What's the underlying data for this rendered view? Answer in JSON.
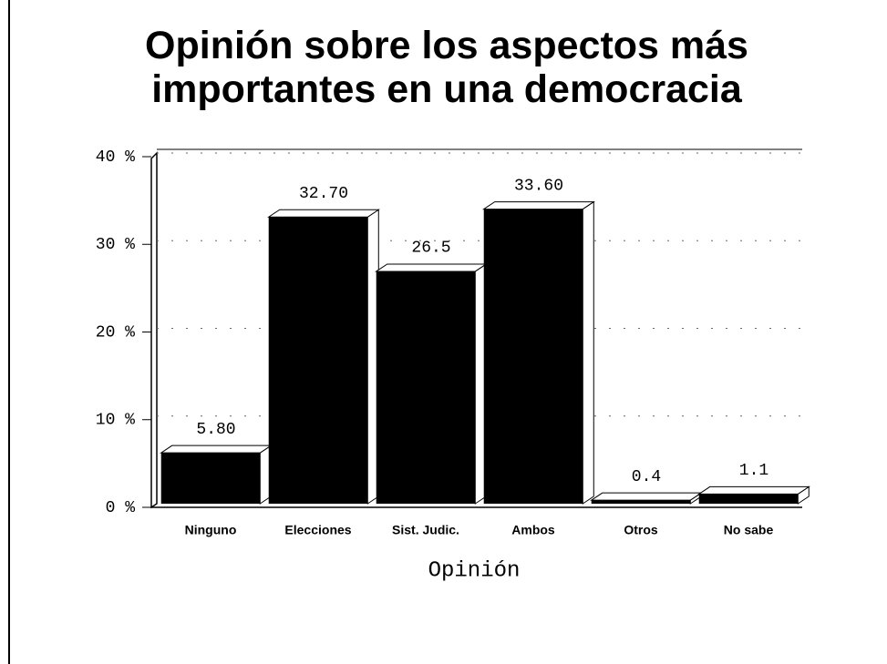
{
  "chart_data": {
    "type": "bar3d",
    "title": "Opinión sobre los aspectos más importantes en una democracia",
    "xlabel": "Opinión",
    "categories": [
      "Ninguno",
      "Elecciones",
      "Sist. Judic.",
      "Ambos",
      "Otros",
      "No sabe"
    ],
    "values": [
      5.8,
      32.7,
      26.5,
      33.6,
      0.4,
      1.1
    ],
    "value_labels": [
      "5.80",
      "32.70",
      "26.5",
      "33.60",
      "0.4",
      "1.1"
    ],
    "color": "#000000",
    "ylim": [
      0,
      40
    ],
    "yticks": [
      {
        "value": 0,
        "label": "0 %"
      },
      {
        "value": 10,
        "label": "10 %"
      },
      {
        "value": 20,
        "label": "20 %"
      },
      {
        "value": 30,
        "label": "30 %"
      },
      {
        "value": 40,
        "label": "40 %"
      }
    ],
    "grid": true
  }
}
